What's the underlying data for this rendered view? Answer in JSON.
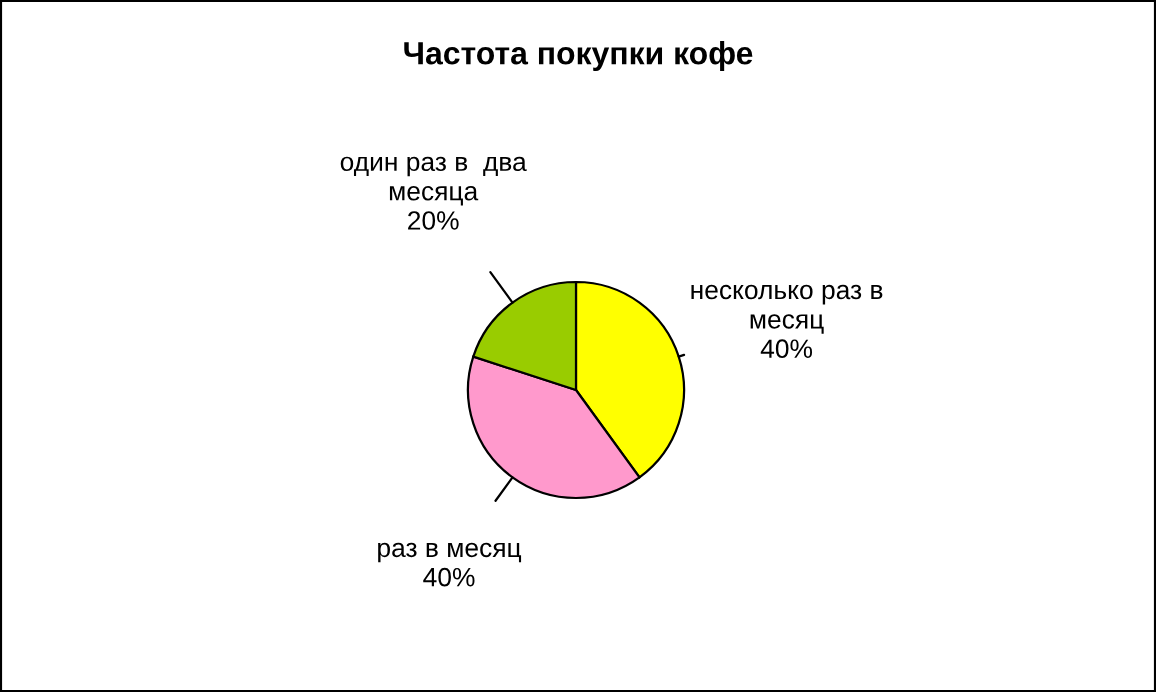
{
  "chart_data": {
    "type": "pie",
    "title": "Частота покупки кофе",
    "categories": [
      "несколько раз в\nмесяц",
      "раз в месяц",
      "один раз в  два\nмесяца"
    ],
    "values": [
      40,
      40,
      20
    ],
    "colors": [
      "#ffff00",
      "#ff99cc",
      "#99cc00"
    ],
    "value_labels": [
      "40%",
      "40%",
      "20%"
    ],
    "legend": false
  }
}
